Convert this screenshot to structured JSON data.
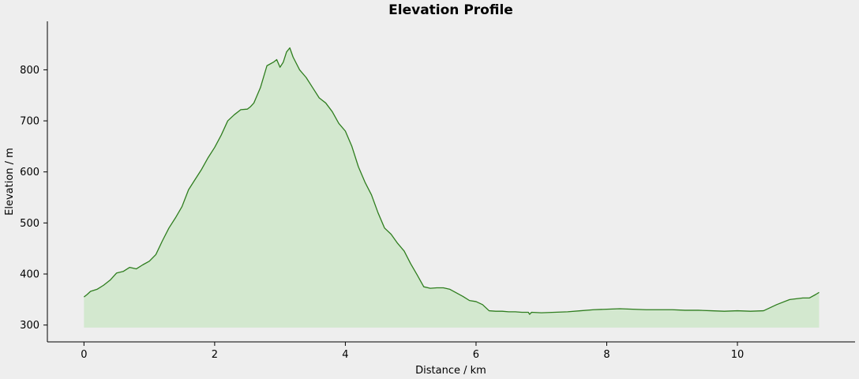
{
  "chart_data": {
    "type": "area",
    "title": "Elevation Profile",
    "xlabel": "Distance / km",
    "ylabel": "Elevation / m",
    "xlim": [
      -0.56,
      11.8
    ],
    "ylim": [
      267,
      895
    ],
    "fill_baseline": 295,
    "xticks": [
      0,
      2,
      4,
      6,
      8,
      10
    ],
    "yticks": [
      300,
      400,
      500,
      600,
      700,
      800
    ],
    "grid": false,
    "line_color": "#2e7d1e",
    "fill_color": "#d3e8cf",
    "series": [
      {
        "x": [
          0,
          0.05,
          0.1,
          0.2,
          0.3,
          0.4,
          0.5,
          0.6,
          0.7,
          0.8,
          0.9,
          1.0,
          1.1,
          1.2,
          1.3,
          1.4,
          1.5,
          1.6,
          1.7,
          1.8,
          1.9,
          2.0,
          2.1,
          2.2,
          2.3,
          2.4,
          2.5,
          2.55,
          2.6,
          2.7,
          2.8,
          2.9,
          2.95,
          3.0,
          3.05,
          3.1,
          3.15,
          3.2,
          3.3,
          3.4,
          3.5,
          3.6,
          3.7,
          3.8,
          3.9,
          4.0,
          4.1,
          4.2,
          4.3,
          4.4,
          4.5,
          4.6,
          4.7,
          4.8,
          4.9,
          5.0,
          5.1,
          5.2,
          5.3,
          5.4,
          5.5,
          5.6,
          5.7,
          5.8,
          5.9,
          6.0,
          6.1,
          6.2,
          6.3,
          6.4,
          6.5,
          6.6,
          6.7,
          6.8,
          6.82,
          6.85,
          7.0,
          7.2,
          7.4,
          7.6,
          7.8,
          8.0,
          8.2,
          8.4,
          8.6,
          8.8,
          9.0,
          9.2,
          9.4,
          9.6,
          9.8,
          10.0,
          10.2,
          10.4,
          10.6,
          10.8,
          11.0,
          11.1,
          11.2,
          11.25
        ],
        "y": [
          355,
          360,
          366,
          370,
          378,
          388,
          402,
          405,
          413,
          410,
          418,
          425,
          438,
          465,
          490,
          510,
          532,
          565,
          585,
          605,
          628,
          648,
          672,
          700,
          712,
          722,
          723,
          728,
          735,
          765,
          808,
          815,
          820,
          805,
          815,
          835,
          843,
          825,
          800,
          785,
          765,
          745,
          735,
          718,
          695,
          680,
          650,
          610,
          580,
          555,
          520,
          490,
          478,
          460,
          445,
          420,
          398,
          375,
          372,
          373,
          373,
          370,
          363,
          356,
          348,
          346,
          340,
          328,
          327,
          327,
          326,
          326,
          325,
          325,
          321,
          325,
          324,
          325,
          326,
          328,
          330,
          331,
          332,
          331,
          330,
          330,
          330,
          329,
          329,
          328,
          327,
          328,
          327,
          328,
          340,
          350,
          353,
          353,
          360,
          364
        ]
      }
    ]
  }
}
